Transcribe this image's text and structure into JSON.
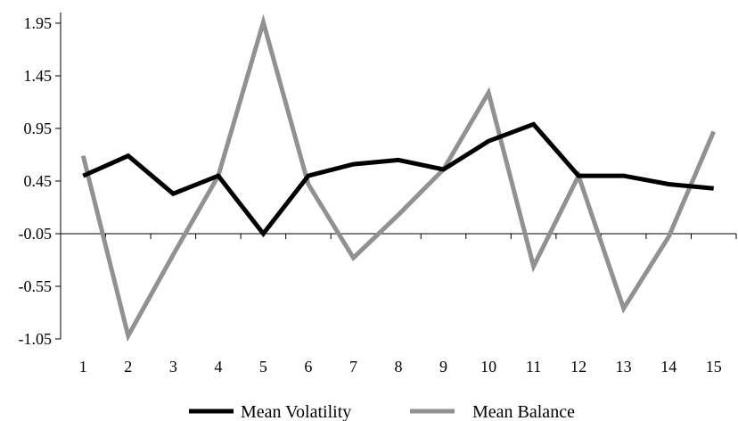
{
  "chart_data": {
    "type": "line",
    "title": "",
    "xlabel": "",
    "ylabel": "",
    "categories": [
      "1",
      "2",
      "3",
      "4",
      "5",
      "6",
      "7",
      "8",
      "9",
      "10",
      "11",
      "12",
      "13",
      "14",
      "15"
    ],
    "ylim": [
      -1.05,
      1.95
    ],
    "yticks": [
      1.95,
      1.45,
      0.95,
      0.45,
      -0.05,
      -0.55,
      -1.05
    ],
    "ytick_labels": [
      "1.95",
      "1.45",
      "0.95",
      "0.45",
      "-0.05",
      "-0.55",
      "-1.05"
    ],
    "x_axis_crosses_at": -0.05,
    "grid": false,
    "legend_position": "bottom",
    "series": [
      {
        "name": "Mean Volatility",
        "color": "#000000",
        "values": [
          0.5,
          0.69,
          0.33,
          0.5,
          -0.05,
          0.5,
          0.61,
          0.65,
          0.56,
          0.83,
          0.99,
          0.5,
          0.5,
          0.42,
          0.38
        ]
      },
      {
        "name": "Mean Balance",
        "color": "#919191",
        "values": [
          0.69,
          -1.02,
          -0.25,
          0.5,
          1.96,
          0.42,
          -0.28,
          0.13,
          0.56,
          1.29,
          -0.36,
          0.5,
          -0.76,
          -0.08,
          0.92
        ]
      }
    ]
  }
}
